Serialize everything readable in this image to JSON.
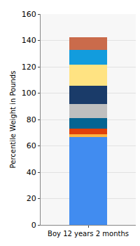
{
  "chart_data": {
    "type": "bar",
    "stacked": true,
    "grid": true,
    "y_label": "Percentile Weight in Pounds",
    "categories": [
      "Boy 12 years 2 months"
    ],
    "series": [
      {
        "color": "#418CF0",
        "values": [
          66.5
        ]
      },
      {
        "color": "#FCB441",
        "values": [
          2.5
        ]
      },
      {
        "color": "#E0400A",
        "values": [
          4
        ]
      },
      {
        "color": "#056492",
        "values": [
          8
        ]
      },
      {
        "color": "#BFBFBF",
        "values": [
          10.5
        ]
      },
      {
        "color": "#1A3B69",
        "values": [
          14
        ]
      },
      {
        "color": "#FFE382",
        "values": [
          16
        ]
      },
      {
        "color": "#129CDD",
        "values": [
          11.5
        ]
      },
      {
        "color": "#CA6B4B",
        "values": [
          9.5
        ]
      }
    ],
    "ylim": [
      0,
      160
    ],
    "yticks": [
      0,
      20,
      40,
      60,
      80,
      100,
      120,
      140,
      160
    ]
  }
}
